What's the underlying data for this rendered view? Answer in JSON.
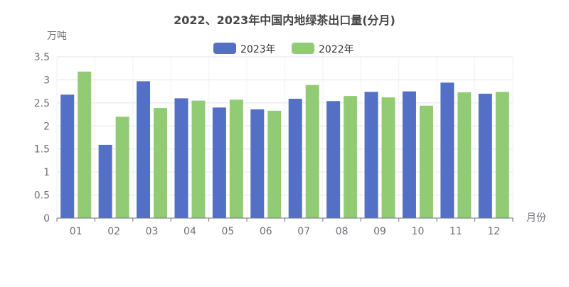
{
  "chart_data": {
    "type": "bar",
    "title": "2022、2023年中国内地绿茶出口量(分月)",
    "ylabel": "万吨",
    "xlabel": "月份",
    "categories": [
      "01",
      "02",
      "03",
      "04",
      "05",
      "06",
      "07",
      "08",
      "09",
      "10",
      "11",
      "12"
    ],
    "series": [
      {
        "name": "2023年",
        "color": "#5470c6",
        "values": [
          2.68,
          1.59,
          2.97,
          2.6,
          2.4,
          2.36,
          2.59,
          2.54,
          2.74,
          2.75,
          2.94,
          2.7
        ]
      },
      {
        "name": "2022年",
        "color": "#91cc75",
        "values": [
          3.18,
          2.2,
          2.39,
          2.55,
          2.57,
          2.33,
          2.89,
          2.65,
          2.62,
          2.44,
          2.73,
          2.74
        ]
      }
    ],
    "yticks": [
      "0",
      "0.5",
      "1",
      "1.5",
      "2",
      "2.5",
      "3",
      "3.5"
    ],
    "ylim": [
      0,
      3.5
    ],
    "grid": true,
    "legend_position": "top-center"
  }
}
